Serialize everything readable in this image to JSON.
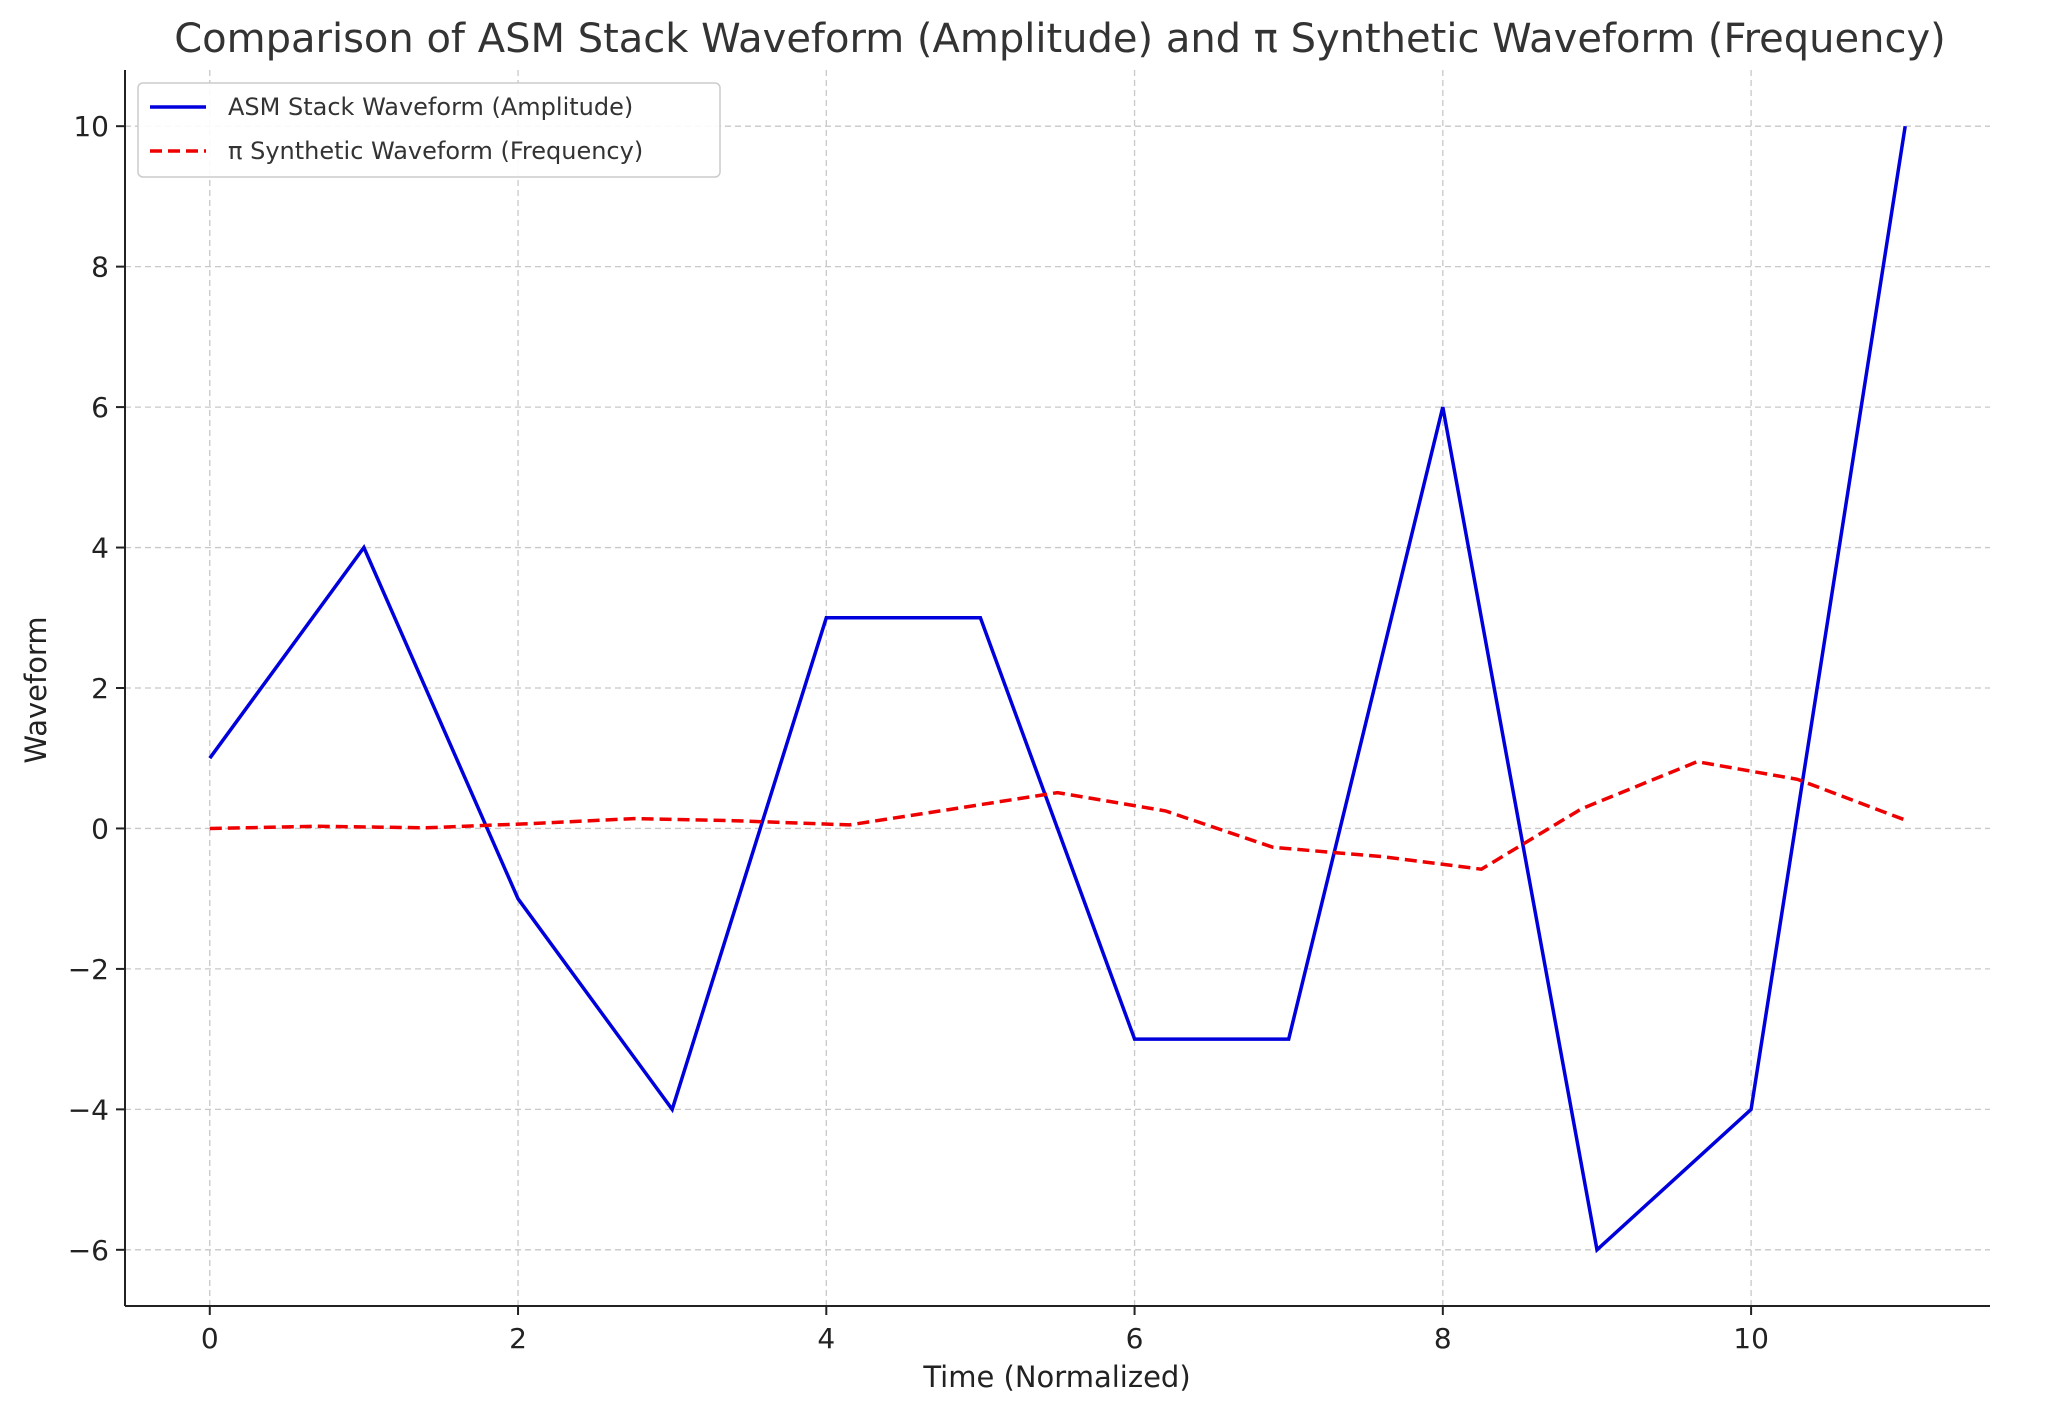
{
  "chart_data": {
    "type": "line",
    "title": "Comparison of ASM Stack Waveform (Amplitude) and π Synthetic Waveform (Frequency)",
    "xlabel": "Time (Normalized)",
    "ylabel": "Waveform",
    "xlim": [
      -0.55,
      11.55
    ],
    "ylim": [
      -6.8,
      10.8
    ],
    "xticks": [
      0,
      2,
      4,
      6,
      8,
      10
    ],
    "yticks": [
      -6,
      -4,
      -2,
      0,
      2,
      4,
      6,
      8,
      10
    ],
    "xtick_labels": [
      "0",
      "2",
      "4",
      "6",
      "8",
      "10"
    ],
    "ytick_labels": [
      "−6",
      "−4",
      "−2",
      "0",
      "2",
      "4",
      "6",
      "8",
      "10"
    ],
    "grid": true,
    "legend_position": "upper-left",
    "series": [
      {
        "name": "ASM Stack Waveform (Amplitude)",
        "color": "#0000dd",
        "style": "solid",
        "x": [
          0,
          1,
          2,
          3,
          4,
          5,
          6,
          7,
          8,
          9,
          10,
          11
        ],
        "y": [
          1,
          4,
          -1,
          -4,
          3,
          3,
          -3,
          -3,
          6,
          -6,
          -4,
          10
        ]
      },
      {
        "name": "π Synthetic Waveform (Frequency)",
        "color": "#ee0000",
        "style": "dashed",
        "x": [
          0,
          0.7,
          1.4,
          2.1,
          2.75,
          3.4,
          4.15,
          4.8,
          5.5,
          6.2,
          6.9,
          7.6,
          8.25,
          8.9,
          9.65,
          10.3,
          11
        ],
        "y": [
          0,
          0.03,
          0.01,
          0.07,
          0.14,
          0.11,
          0.05,
          0.27,
          0.51,
          0.25,
          -0.27,
          -0.4,
          -0.58,
          0.28,
          0.95,
          0.7,
          0.12
        ]
      }
    ]
  }
}
